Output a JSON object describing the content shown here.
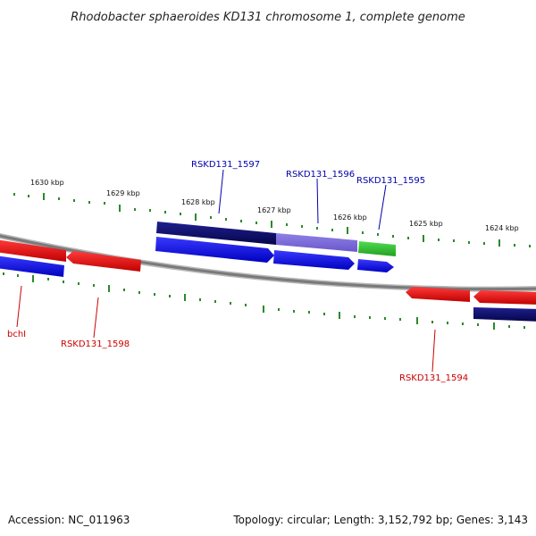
{
  "title": "Rhodobacter sphaeroides KD131 chromosome 1, complete genome",
  "footer": {
    "accession": "Accession: NC_011963",
    "summary": "Topology: circular; Length: 3,152,792 bp; Genes: 3,143"
  },
  "colors": {
    "backbone": "#8a8a8a",
    "tick": "#2a8a2a",
    "gene_red": "#e01010",
    "gene_blue": "#1010e0",
    "gene_navy": "#0a0a70",
    "gene_purple": "#7a6ad8",
    "gene_green": "#30c030",
    "label_top": "#0000aa",
    "label_bottom": "#cc0000"
  },
  "scale_labels": [
    "1630 kbp",
    "1629 kbp",
    "1628 kbp",
    "1627 kbp",
    "1626 kbp",
    "1625 kbp",
    "1624 kbp"
  ],
  "gene_labels_top": [
    "RSKD131_1597",
    "RSKD131_1596",
    "RSKD131_1595"
  ],
  "gene_labels_bottom": [
    "bchI",
    "RSKD131_1598",
    "RSKD131_1594"
  ]
}
